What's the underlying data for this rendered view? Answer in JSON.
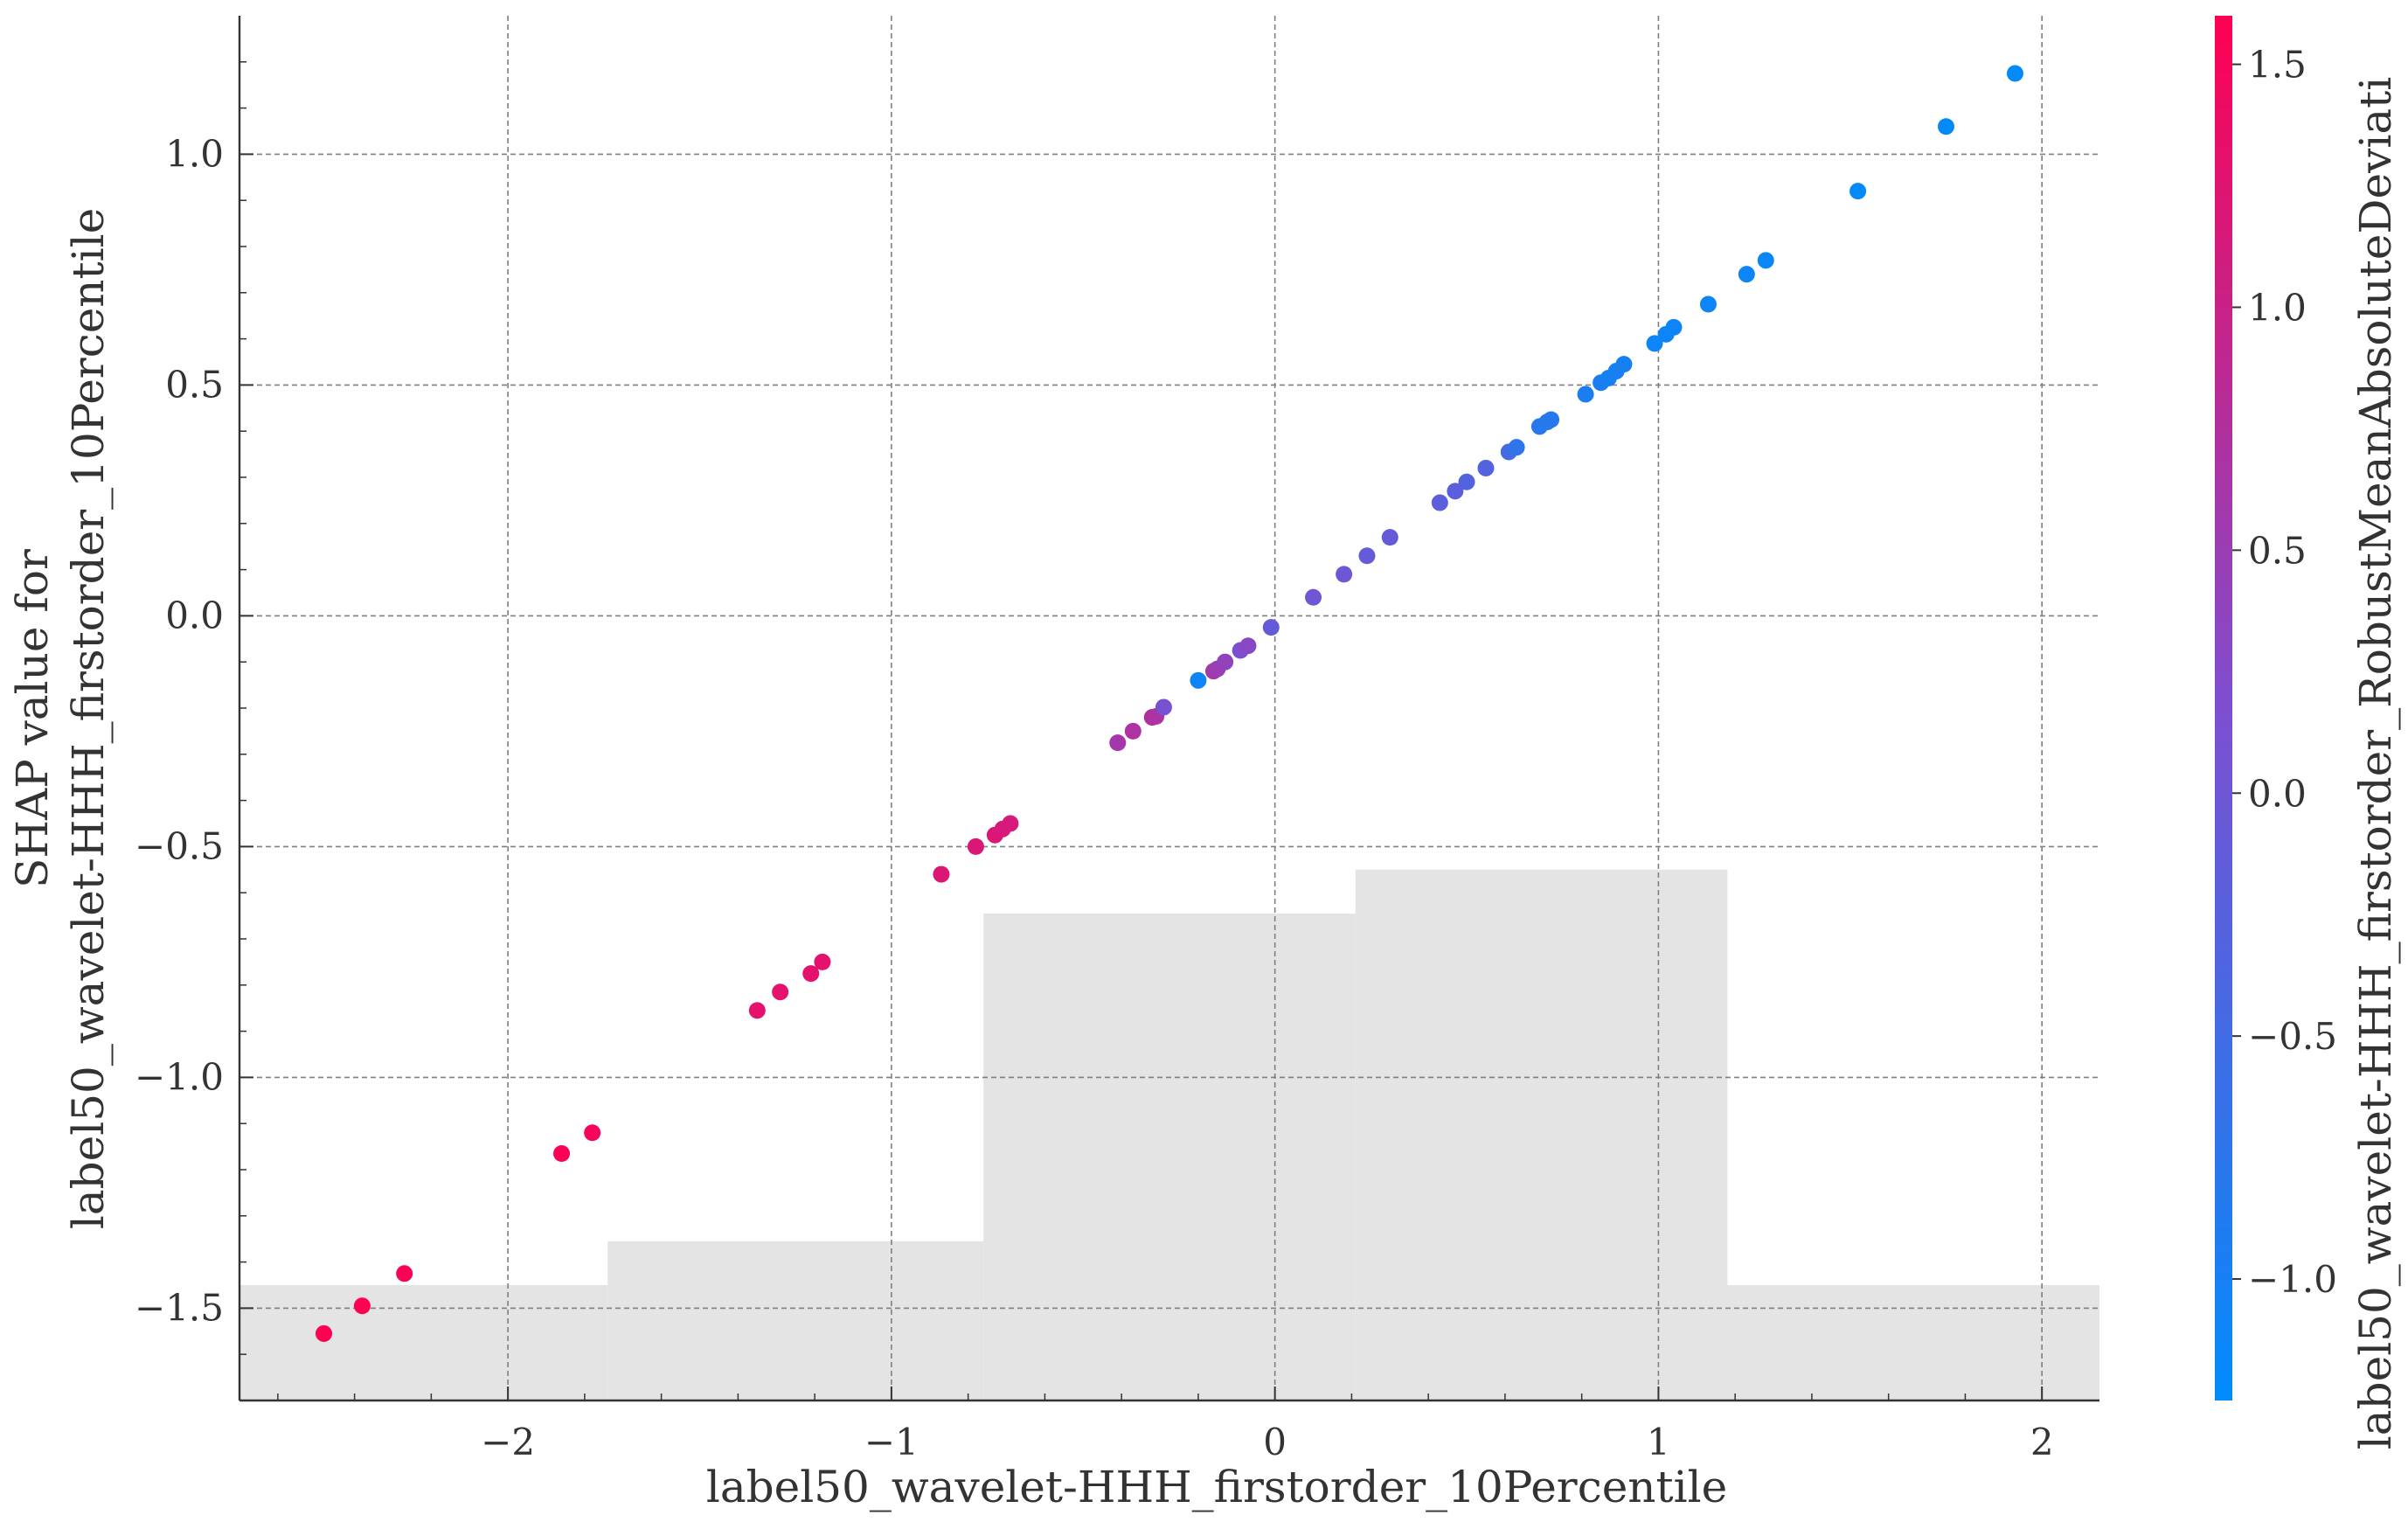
{
  "chart_data": {
    "type": "scatter",
    "title": "",
    "xlabel": "label50_wavelet-HHH_firstorder_10Percentile",
    "ylabel_lines": [
      "SHAP value for",
      "label50_wavelet-HHH_firstorder_10Percentile"
    ],
    "xlim": [
      -2.7,
      2.15
    ],
    "ylim": [
      -1.7,
      1.3
    ],
    "x_ticks": [
      -2,
      -1,
      0,
      1,
      2
    ],
    "x_tick_labels": [
      "−2",
      "−1",
      "0",
      "1",
      "2"
    ],
    "y_ticks": [
      -1.5,
      -1.0,
      -0.5,
      0.0,
      0.5,
      1.0
    ],
    "y_tick_labels": [
      "−1.5",
      "−1.0",
      "−0.5",
      "0.0",
      "0.5",
      "1.0"
    ],
    "grid": true,
    "grid_style": "dashed",
    "colorbar": {
      "label": "label50_wavelet-HHH_firstorder_RobustMeanAbsoluteDeviati",
      "range": [
        -1.25,
        1.6
      ],
      "ticks": [
        -1.0,
        -0.5,
        0.0,
        0.5,
        1.0,
        1.5
      ],
      "tick_labels": [
        "−1.0",
        "−0.5",
        "0.0",
        "0.5",
        "1.0",
        "1.5"
      ],
      "color_low": "#008bfb",
      "color_mid": "#7d4fd0",
      "color_high": "#ff0052"
    },
    "histogram": {
      "color": "#e4e4e4",
      "bins": [
        {
          "x0": -2.7,
          "x1": -1.74,
          "top": -1.45
        },
        {
          "x0": -1.74,
          "x1": -0.76,
          "top": -1.355
        },
        {
          "x0": -0.76,
          "x1": 0.21,
          "top": -0.645
        },
        {
          "x0": 0.21,
          "x1": 1.18,
          "top": -0.55
        },
        {
          "x0": 1.18,
          "x1": 2.15,
          "top": -1.45
        }
      ]
    },
    "points": [
      {
        "x": -2.48,
        "y": -1.555,
        "c": 1.6
      },
      {
        "x": -2.38,
        "y": -1.495,
        "c": 1.6
      },
      {
        "x": -2.27,
        "y": -1.425,
        "c": 1.55
      },
      {
        "x": -1.86,
        "y": -1.165,
        "c": 1.55
      },
      {
        "x": -1.78,
        "y": -1.12,
        "c": 1.5
      },
      {
        "x": -1.35,
        "y": -0.855,
        "c": 1.3
      },
      {
        "x": -1.29,
        "y": -0.815,
        "c": 1.3
      },
      {
        "x": -1.21,
        "y": -0.775,
        "c": 1.3
      },
      {
        "x": -1.18,
        "y": -0.75,
        "c": 1.3
      },
      {
        "x": -0.87,
        "y": -0.56,
        "c": 1.2
      },
      {
        "x": -0.78,
        "y": -0.5,
        "c": 1.2
      },
      {
        "x": -0.73,
        "y": -0.475,
        "c": 1.2
      },
      {
        "x": -0.71,
        "y": -0.462,
        "c": 1.15
      },
      {
        "x": -0.69,
        "y": -0.45,
        "c": 1.15
      },
      {
        "x": -0.41,
        "y": -0.275,
        "c": 0.6
      },
      {
        "x": -0.37,
        "y": -0.25,
        "c": 0.7
      },
      {
        "x": -0.32,
        "y": -0.22,
        "c": 0.75
      },
      {
        "x": -0.31,
        "y": -0.218,
        "c": 0.7
      },
      {
        "x": -0.29,
        "y": -0.198,
        "c": 0.1
      },
      {
        "x": -0.2,
        "y": -0.14,
        "c": -1.1
      },
      {
        "x": -0.16,
        "y": -0.12,
        "c": 0.6
      },
      {
        "x": -0.15,
        "y": -0.115,
        "c": 0.5
      },
      {
        "x": -0.13,
        "y": -0.1,
        "c": 0.4
      },
      {
        "x": -0.09,
        "y": -0.075,
        "c": 0.2
      },
      {
        "x": -0.07,
        "y": -0.065,
        "c": 0.3
      },
      {
        "x": -0.01,
        "y": -0.025,
        "c": -0.1
      },
      {
        "x": 0.1,
        "y": 0.04,
        "c": 0.0
      },
      {
        "x": 0.18,
        "y": 0.09,
        "c": 0.0
      },
      {
        "x": 0.24,
        "y": 0.13,
        "c": -0.1
      },
      {
        "x": 0.3,
        "y": 0.17,
        "c": -0.1
      },
      {
        "x": 0.43,
        "y": 0.245,
        "c": -0.2
      },
      {
        "x": 0.47,
        "y": 0.27,
        "c": -0.2
      },
      {
        "x": 0.5,
        "y": 0.29,
        "c": -0.3
      },
      {
        "x": 0.55,
        "y": 0.32,
        "c": -0.3
      },
      {
        "x": 0.61,
        "y": 0.355,
        "c": -0.5
      },
      {
        "x": 0.63,
        "y": 0.365,
        "c": -0.7
      },
      {
        "x": 0.69,
        "y": 0.41,
        "c": -0.8
      },
      {
        "x": 0.71,
        "y": 0.42,
        "c": -0.8
      },
      {
        "x": 0.72,
        "y": 0.425,
        "c": -0.8
      },
      {
        "x": 0.81,
        "y": 0.48,
        "c": -0.95
      },
      {
        "x": 0.85,
        "y": 0.505,
        "c": -0.95
      },
      {
        "x": 0.87,
        "y": 0.515,
        "c": -1.0
      },
      {
        "x": 0.89,
        "y": 0.53,
        "c": -1.0
      },
      {
        "x": 0.91,
        "y": 0.545,
        "c": -1.0
      },
      {
        "x": 0.99,
        "y": 0.59,
        "c": -1.1
      },
      {
        "x": 1.02,
        "y": 0.61,
        "c": -1.1
      },
      {
        "x": 1.04,
        "y": 0.625,
        "c": -1.1
      },
      {
        "x": 1.13,
        "y": 0.675,
        "c": -1.1
      },
      {
        "x": 1.23,
        "y": 0.74,
        "c": -1.1
      },
      {
        "x": 1.28,
        "y": 0.77,
        "c": -1.15
      },
      {
        "x": 1.52,
        "y": 0.92,
        "c": -1.2
      },
      {
        "x": 1.75,
        "y": 1.06,
        "c": -1.2
      },
      {
        "x": 1.93,
        "y": 1.175,
        "c": -1.2
      }
    ]
  }
}
